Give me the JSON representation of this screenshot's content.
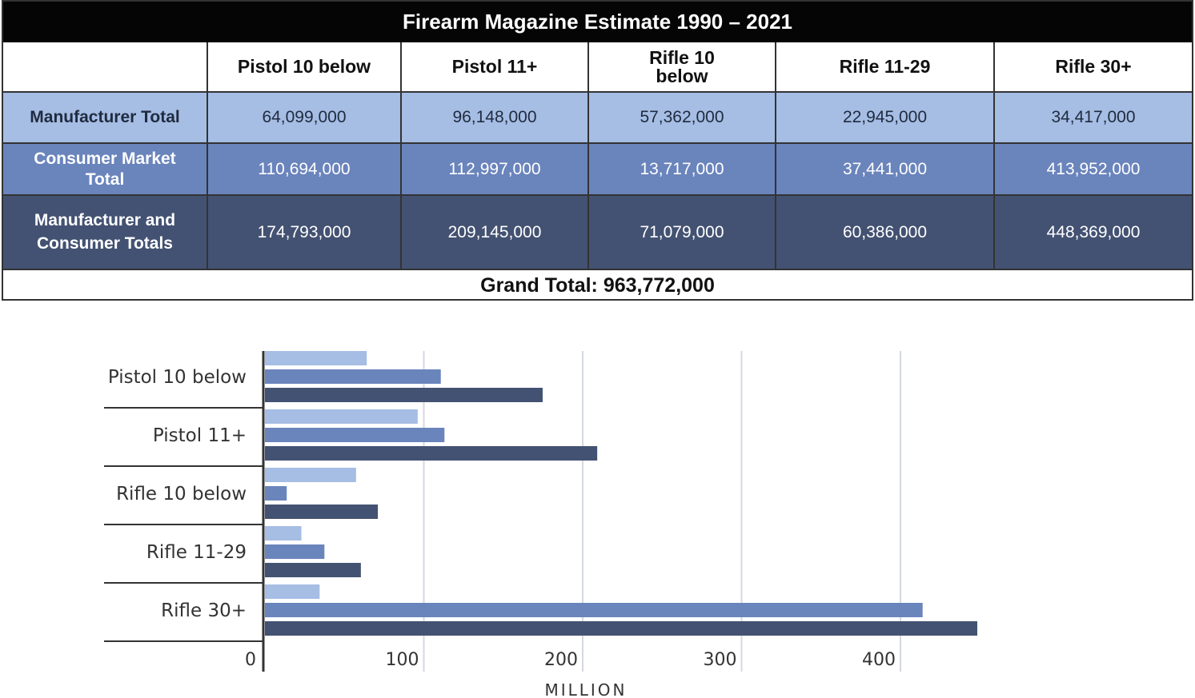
{
  "table": {
    "title": "Firearm Magazine Estimate 1990 – 2021",
    "columns": [
      "",
      "Pistol 10 below",
      "Pistol 11+",
      "Rifle 10 below",
      "Rifle 11-29",
      "Rifle 30+"
    ],
    "rows": [
      {
        "label": "Manufacturer Total",
        "values": [
          "64,099,000",
          "96,148,000",
          "57,362,000",
          "22,945,000",
          "34,417,000"
        ],
        "color": "#a6bde4"
      },
      {
        "label": "Consumer Market Total",
        "values": [
          "110,694,000",
          "112,997,000",
          "13,717,000",
          "37,441,000",
          "413,952,000"
        ],
        "color": "#6a84bc"
      },
      {
        "label": "Manufacturer and Consumer Totals",
        "values": [
          "174,793,000",
          "209,145,000",
          "71,079,000",
          "60,386,000",
          "448,369,000"
        ],
        "color": "#435272"
      }
    ],
    "grand_total": "Grand Total: 963,772,000"
  },
  "chart_data": {
    "type": "bar",
    "orientation": "horizontal",
    "categories": [
      "Pistol 10 below",
      "Pistol 11+",
      "Rifle 10 below",
      "Rifle 11-29",
      "Rifle 30+"
    ],
    "series": [
      {
        "values": [
          64.099,
          96.148,
          57.362,
          22.945,
          34.417
        ],
        "color": "#a6bde4"
      },
      {
        "values": [
          110.694,
          112.997,
          13.717,
          37.441,
          413.952
        ],
        "color": "#6a84bc"
      },
      {
        "values": [
          174.793,
          209.145,
          71.079,
          60.386,
          448.369
        ],
        "color": "#435272"
      }
    ],
    "xlabel": "MILLION",
    "xticks": [
      "0",
      "100",
      "200",
      "300",
      "400"
    ],
    "xtick_values": [
      0,
      100,
      200,
      300,
      400
    ],
    "xlim": [
      0,
      460
    ],
    "grid": true,
    "legend": false
  }
}
